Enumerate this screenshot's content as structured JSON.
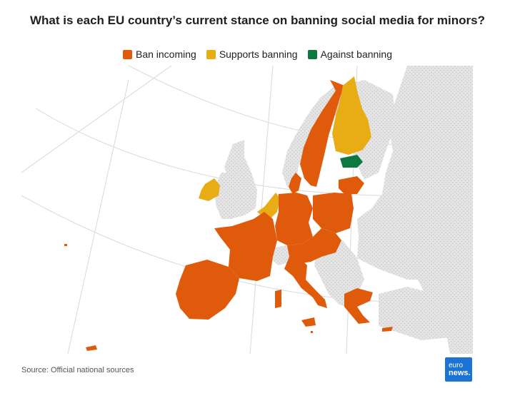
{
  "title": "What is each EU country’s current stance on banning social media for minors?",
  "legend": [
    {
      "label": "Ban incoming",
      "color": "#e05a0c"
    },
    {
      "label": "Supports banning",
      "color": "#e8ac14"
    },
    {
      "label": "Against banning",
      "color": "#0c7a40"
    }
  ],
  "source": "Source: Official national sources",
  "logo": {
    "line1": "euro",
    "line2": "news."
  },
  "map": {
    "type": "choropleth",
    "region": "Europe",
    "non_eu_fill": "hatched-grey",
    "countries": [
      {
        "name": "Sweden",
        "stance": "Ban incoming"
      },
      {
        "name": "Finland",
        "stance": "Supports banning"
      },
      {
        "name": "Estonia",
        "stance": "Against banning"
      },
      {
        "name": "Latvia",
        "stance": "Ban incoming"
      },
      {
        "name": "Lithuania",
        "stance": "Ban incoming"
      },
      {
        "name": "Denmark",
        "stance": "Ban incoming"
      },
      {
        "name": "Ireland",
        "stance": "Supports banning"
      },
      {
        "name": "Netherlands",
        "stance": "Supports banning"
      },
      {
        "name": "Belgium",
        "stance": "Supports banning"
      },
      {
        "name": "Luxembourg",
        "stance": "Ban incoming"
      },
      {
        "name": "Germany",
        "stance": "Ban incoming"
      },
      {
        "name": "Poland",
        "stance": "Ban incoming"
      },
      {
        "name": "Czechia",
        "stance": "Ban incoming"
      },
      {
        "name": "Slovakia",
        "stance": "Ban incoming"
      },
      {
        "name": "Austria",
        "stance": "Ban incoming"
      },
      {
        "name": "Hungary",
        "stance": "Ban incoming"
      },
      {
        "name": "Slovenia",
        "stance": "Ban incoming"
      },
      {
        "name": "Croatia",
        "stance": "Ban incoming"
      },
      {
        "name": "France",
        "stance": "Ban incoming"
      },
      {
        "name": "Spain",
        "stance": "Ban incoming"
      },
      {
        "name": "Portugal",
        "stance": "Ban incoming"
      },
      {
        "name": "Italy",
        "stance": "Ban incoming"
      },
      {
        "name": "Greece",
        "stance": "Ban incoming"
      },
      {
        "name": "Cyprus",
        "stance": "Ban incoming"
      },
      {
        "name": "Malta",
        "stance": "Ban incoming"
      }
    ]
  }
}
